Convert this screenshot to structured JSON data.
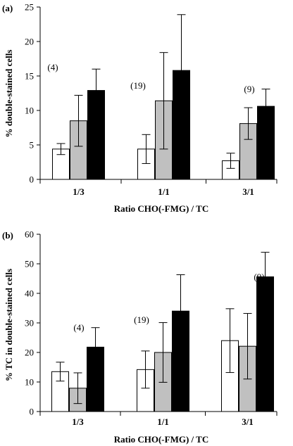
{
  "colors": {
    "bar_fills": [
      "#ffffff",
      "#c0c0c0",
      "#000000"
    ],
    "stroke": "#000000"
  },
  "chart_data": [
    {
      "panel": "(a)",
      "type": "bar",
      "categories": [
        "1/3",
        "1/1",
        "3/1"
      ],
      "series": [
        {
          "values": [
            4.4,
            4.4,
            2.7
          ],
          "errors": [
            0.8,
            2.1,
            1.1
          ]
        },
        {
          "values": [
            8.5,
            11.4,
            8.1
          ],
          "errors": [
            3.7,
            7.0,
            2.3
          ]
        },
        {
          "values": [
            12.9,
            15.8,
            10.6
          ],
          "errors": [
            3.1,
            8.1,
            2.5
          ]
        }
      ],
      "annotations": [
        "(4)",
        "(19)",
        "(9)"
      ],
      "xlabel": "Ratio CHO(-FMG) / TC",
      "ylabel": "% double-stained cells",
      "ylim": [
        0,
        25
      ],
      "yticks": [
        "0",
        "5",
        "10",
        "15",
        "20",
        "25"
      ]
    },
    {
      "panel": "(b)",
      "type": "bar",
      "categories": [
        "1/3",
        "1/1",
        "3/1"
      ],
      "series": [
        {
          "values": [
            13.5,
            14.2,
            24.0
          ],
          "errors": [
            3.2,
            6.3,
            10.8
          ]
        },
        {
          "values": [
            7.9,
            20.0,
            22.1
          ],
          "errors": [
            5.2,
            10.1,
            11.1
          ]
        },
        {
          "values": [
            21.8,
            34.0,
            45.6
          ],
          "errors": [
            6.6,
            12.3,
            8.3
          ]
        }
      ],
      "annotations": [
        "(4)",
        "(19)",
        "(9)"
      ],
      "xlabel": "Ratio CHO(-FMG) / TC",
      "ylabel": "% TC in double-stained cells",
      "ylim": [
        0,
        60
      ],
      "yticks": [
        "0",
        "10",
        "20",
        "30",
        "40",
        "50",
        "60"
      ]
    }
  ]
}
